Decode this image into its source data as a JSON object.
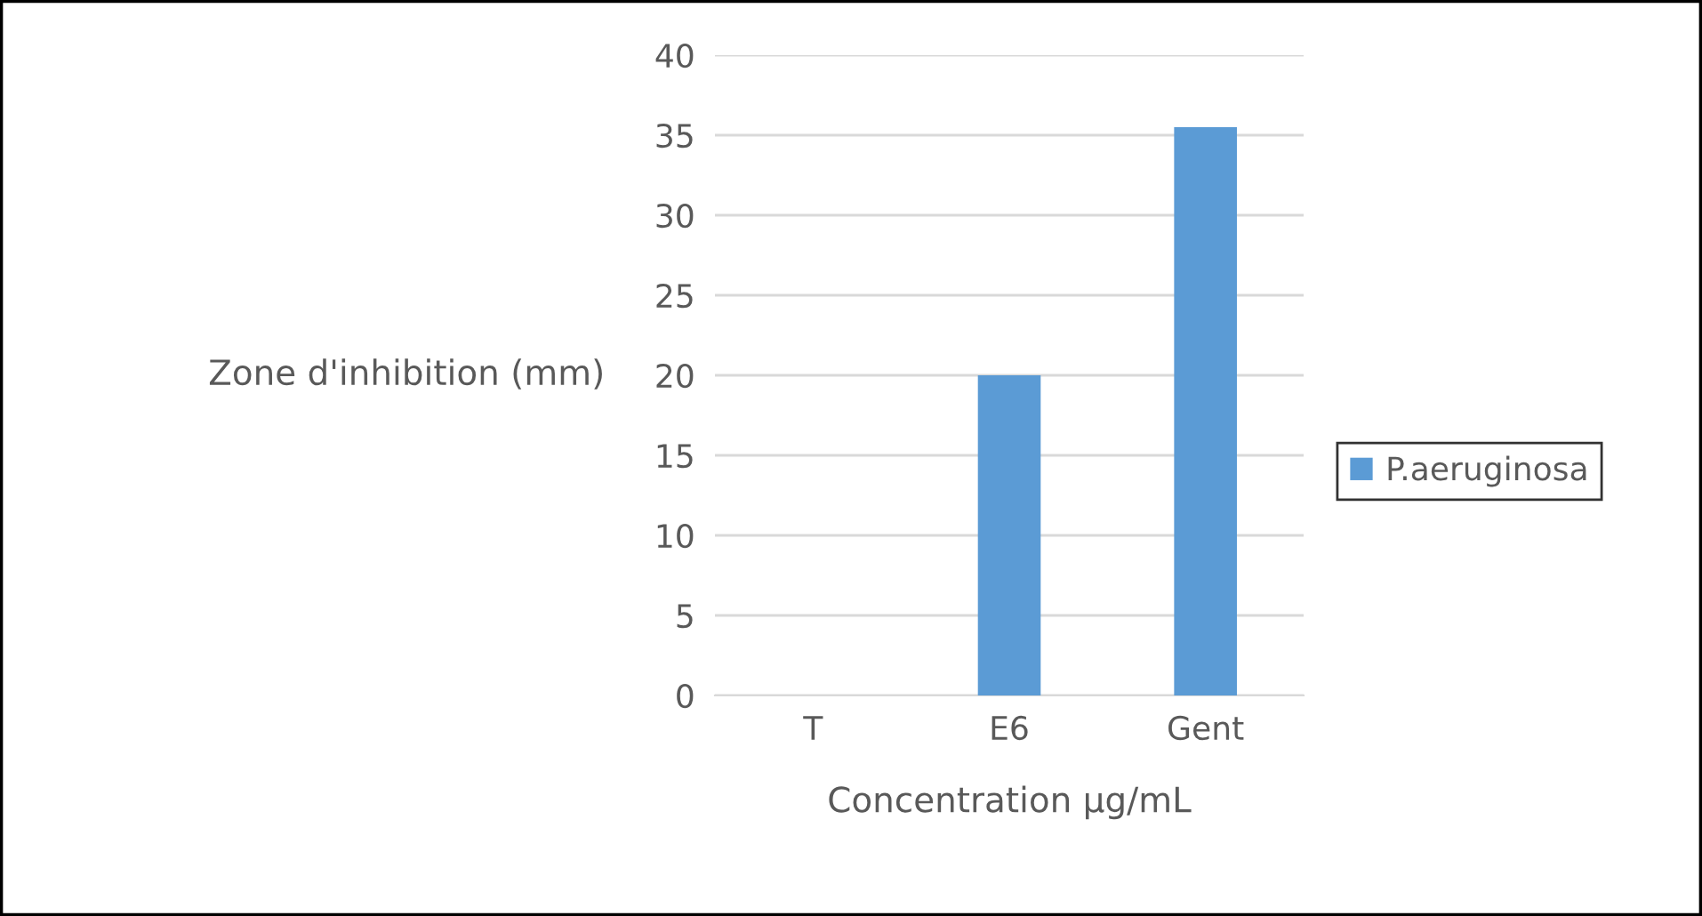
{
  "chart_data": {
    "type": "bar",
    "xlabel": "Concentration µg/mL",
    "ylabel": "Zone d'inhibition (mm)",
    "categories": [
      "T",
      "E6",
      "Gent"
    ],
    "series": [
      {
        "name": "P.aeruginosa",
        "color": "#5b9bd5",
        "values": [
          0,
          20,
          35.5
        ]
      }
    ],
    "ylim": [
      0,
      40
    ],
    "yticks": [
      0,
      5,
      10,
      15,
      20,
      25,
      30,
      35,
      40
    ],
    "grid": "y",
    "legend": "right"
  }
}
